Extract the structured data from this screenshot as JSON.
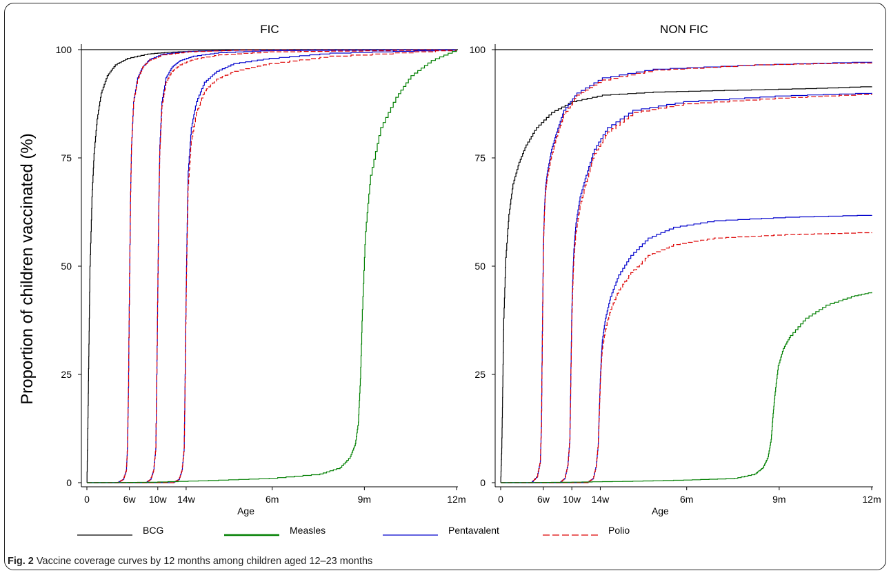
{
  "figure": {
    "caption_label": "Fig. 2",
    "caption_text": "Vaccine coverage curves by 12 months among children aged 12–23 months",
    "ylabel": "Proportion of children vaccinated (%)",
    "xlabel": "Age"
  },
  "legend": [
    {
      "name": "BCG",
      "color": "#000000",
      "dash": false
    },
    {
      "name": "Measles",
      "color": "#007f00",
      "dash": false
    },
    {
      "name": "Pentavalent",
      "color": "#0000cc",
      "dash": false
    },
    {
      "name": "Polio",
      "color": "#dd0000",
      "dash": true
    }
  ],
  "chart_data": [
    {
      "type": "line",
      "title": "FIC",
      "xlabel": "Age",
      "ylabel": "Proportion of children vaccinated (%)",
      "x_unit": "days",
      "xlim": [
        0,
        365
      ],
      "ylim": [
        0,
        100
      ],
      "x_ticks": [
        {
          "value": 0,
          "label": "0"
        },
        {
          "value": 42,
          "label": "6w"
        },
        {
          "value": 70,
          "label": "10w"
        },
        {
          "value": 98,
          "label": "14w"
        },
        {
          "value": 183,
          "label": "6m"
        },
        {
          "value": 274,
          "label": "9m"
        },
        {
          "value": 365,
          "label": "12m"
        }
      ],
      "y_ticks": [
        0,
        25,
        50,
        75,
        100
      ],
      "reference_line": 100,
      "series": [
        {
          "name": "BCG",
          "color": "#000000",
          "x": [
            0,
            1,
            2,
            3,
            5,
            7,
            10,
            14,
            20,
            28,
            40,
            60,
            80,
            110,
            150,
            200,
            365
          ],
          "y": [
            0,
            15,
            32,
            50,
            66,
            76,
            84,
            90,
            94,
            96.5,
            98,
            99,
            99.4,
            99.7,
            99.9,
            100,
            100
          ]
        },
        {
          "name": "Pentavalent",
          "color": "#0000cc",
          "x": [
            0,
            30,
            36,
            39,
            40,
            41,
            42,
            43,
            44,
            46,
            50,
            55,
            62,
            75,
            100,
            150,
            365
          ],
          "y": [
            0,
            0,
            0.8,
            3,
            8,
            22,
            45,
            65,
            78,
            88,
            93.5,
            96,
            97.8,
            99,
            99.6,
            99.9,
            100
          ]
        },
        {
          "name": "Polio",
          "color": "#dd0000",
          "dash": true,
          "x": [
            0,
            30,
            36,
            39,
            40,
            41,
            42,
            43,
            44,
            46,
            50,
            55,
            62,
            75,
            100,
            150,
            365
          ],
          "y": [
            0,
            0,
            0.8,
            3,
            8,
            22,
            45,
            65,
            78,
            88,
            93,
            96,
            97.6,
            98.8,
            99.5,
            99.9,
            100
          ]
        },
        {
          "name": "Pentavalent",
          "color": "#0000cc",
          "x": [
            0,
            58,
            63,
            66,
            68,
            69,
            70,
            71,
            72,
            74,
            78,
            84,
            92,
            105,
            130,
            180,
            365
          ],
          "y": [
            0,
            0,
            0.8,
            3,
            8,
            25,
            45,
            65,
            78,
            88,
            93.5,
            96,
            97.5,
            98.5,
            99.3,
            99.8,
            100
          ]
        },
        {
          "name": "Polio",
          "color": "#dd0000",
          "dash": true,
          "x": [
            0,
            58,
            63,
            66,
            68,
            69,
            70,
            71,
            72,
            74,
            78,
            84,
            92,
            105,
            130,
            180,
            365
          ],
          "y": [
            0,
            0,
            0.8,
            3,
            8,
            25,
            45,
            64,
            77,
            87,
            92.5,
            95,
            96.5,
            97.8,
            98.8,
            99.5,
            100
          ]
        },
        {
          "name": "Pentavalent",
          "color": "#0000cc",
          "x": [
            0,
            85,
            91,
            94,
            96,
            97,
            98,
            99,
            100,
            103,
            108,
            116,
            128,
            145,
            180,
            240,
            365
          ],
          "y": [
            0,
            0,
            0.8,
            3,
            8,
            25,
            45,
            60,
            72,
            82,
            88,
            92.5,
            95,
            96.8,
            98,
            99.2,
            100
          ]
        },
        {
          "name": "Polio",
          "color": "#dd0000",
          "dash": true,
          "x": [
            0,
            85,
            91,
            94,
            96,
            97,
            98,
            99,
            100,
            103,
            108,
            116,
            128,
            145,
            180,
            240,
            365
          ],
          "y": [
            0,
            0,
            0.8,
            3,
            8,
            24,
            43,
            57,
            69,
            79,
            85.5,
            90.5,
            93.2,
            95,
            96.8,
            98.5,
            100
          ]
        },
        {
          "name": "Measles",
          "color": "#007f00",
          "x": [
            0,
            60,
            120,
            180,
            230,
            250,
            260,
            265,
            268,
            270,
            272,
            275,
            280,
            290,
            305,
            320,
            340,
            365
          ],
          "y": [
            0,
            0.1,
            0.5,
            1,
            2,
            3.5,
            6,
            9,
            14,
            24,
            40,
            58,
            71,
            82,
            89,
            94,
            97.5,
            100
          ]
        }
      ]
    },
    {
      "type": "line",
      "title": "NON FIC",
      "xlabel": "Age",
      "ylabel": "Proportion of children vaccinated (%)",
      "x_unit": "days",
      "xlim": [
        0,
        365
      ],
      "ylim": [
        0,
        100
      ],
      "x_ticks": [
        {
          "value": 0,
          "label": "0"
        },
        {
          "value": 42,
          "label": "6w"
        },
        {
          "value": 70,
          "label": "10w"
        },
        {
          "value": 98,
          "label": "14w"
        },
        {
          "value": 183,
          "label": "6m"
        },
        {
          "value": 274,
          "label": "9m"
        },
        {
          "value": 365,
          "label": "12m"
        }
      ],
      "y_ticks": [
        0,
        25,
        50,
        75,
        100
      ],
      "reference_line": 100,
      "series": [
        {
          "name": "BCG",
          "color": "#000000",
          "x": [
            0,
            1,
            2,
            3,
            5,
            8,
            12,
            18,
            25,
            35,
            50,
            70,
            100,
            150,
            220,
            300,
            365
          ],
          "y": [
            0,
            8,
            22,
            38,
            52,
            62,
            69,
            74,
            78,
            82,
            85.5,
            88,
            89.5,
            90.2,
            90.6,
            91,
            91.5
          ]
        },
        {
          "name": "Pentavalent",
          "color": "#0000cc",
          "x": [
            0,
            30,
            36,
            39,
            40,
            41,
            42,
            43,
            44,
            46,
            50,
            55,
            62,
            75,
            100,
            150,
            250,
            365
          ],
          "y": [
            0,
            0,
            1.5,
            5,
            13,
            35,
            55,
            63,
            68,
            72,
            77,
            81,
            86,
            90,
            93.5,
            95.5,
            96.5,
            97.2
          ]
        },
        {
          "name": "Polio",
          "color": "#dd0000",
          "dash": true,
          "x": [
            0,
            30,
            36,
            39,
            40,
            41,
            42,
            43,
            44,
            46,
            50,
            55,
            62,
            75,
            100,
            150,
            250,
            365
          ],
          "y": [
            0,
            0,
            1.5,
            5,
            13,
            34,
            54,
            62,
            67,
            71,
            75.5,
            80,
            85,
            89.5,
            93,
            95.3,
            96.5,
            97
          ]
        },
        {
          "name": "Pentavalent",
          "color": "#0000cc",
          "x": [
            0,
            58,
            63,
            66,
            68,
            69,
            70,
            71,
            72,
            74,
            78,
            84,
            92,
            105,
            130,
            180,
            270,
            365
          ],
          "y": [
            0,
            0,
            1,
            4,
            10,
            25,
            40,
            48,
            54,
            60,
            66,
            71,
            77,
            82,
            86,
            88,
            89.3,
            90
          ]
        },
        {
          "name": "Polio",
          "color": "#dd0000",
          "dash": true,
          "x": [
            0,
            58,
            63,
            66,
            68,
            69,
            70,
            71,
            72,
            74,
            78,
            84,
            92,
            105,
            130,
            180,
            270,
            365
          ],
          "y": [
            0,
            0,
            1,
            4,
            10,
            24,
            38,
            46,
            52,
            58,
            64,
            69.5,
            76,
            81,
            85.5,
            87.5,
            88.8,
            89.8
          ]
        },
        {
          "name": "Pentavalent",
          "color": "#0000cc",
          "x": [
            0,
            85,
            91,
            94,
            96,
            97,
            98,
            99,
            100,
            103,
            108,
            116,
            128,
            145,
            170,
            210,
            280,
            365
          ],
          "y": [
            0,
            0,
            1,
            4,
            9,
            17,
            24,
            29,
            33,
            38,
            43,
            48,
            52.5,
            56.5,
            59,
            60.5,
            61.3,
            61.8
          ]
        },
        {
          "name": "Polio",
          "color": "#dd0000",
          "dash": true,
          "x": [
            0,
            85,
            91,
            94,
            96,
            97,
            98,
            99,
            100,
            103,
            108,
            116,
            128,
            145,
            170,
            210,
            280,
            365
          ],
          "y": [
            0,
            0,
            1,
            4,
            9,
            16,
            23,
            27.5,
            31,
            35.5,
            40,
            44.5,
            48.5,
            52.5,
            55,
            56.5,
            57.3,
            57.8
          ]
        },
        {
          "name": "Measles",
          "color": "#007f00",
          "x": [
            0,
            60,
            120,
            180,
            230,
            250,
            258,
            263,
            266,
            268,
            270,
            273,
            278,
            285,
            300,
            320,
            345,
            365
          ],
          "y": [
            0,
            0.1,
            0.3,
            0.6,
            1,
            2,
            3.5,
            6,
            10,
            16,
            21,
            27,
            31,
            34,
            38,
            41,
            43,
            44
          ]
        }
      ]
    }
  ]
}
